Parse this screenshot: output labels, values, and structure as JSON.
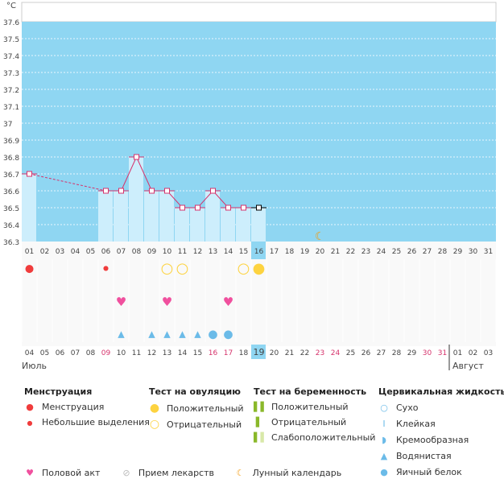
{
  "chart_data": {
    "type": "line",
    "unit_label": "°C",
    "ylim": [
      36.3,
      37.6
    ],
    "yticks": [
      "36.3",
      "36.4",
      "36.5",
      "36.6",
      "36.7",
      "36.8",
      "36.9",
      "37",
      "37.1",
      "37.2",
      "37.3",
      "37.4",
      "37.5",
      "37.6"
    ],
    "cycle_days": [
      "01",
      "02",
      "03",
      "04",
      "05",
      "06",
      "07",
      "08",
      "09",
      "10",
      "11",
      "12",
      "13",
      "14",
      "15",
      "16",
      "17",
      "18",
      "19",
      "20",
      "21",
      "22",
      "23",
      "24",
      "25",
      "26",
      "27",
      "28",
      "29",
      "30",
      "31"
    ],
    "temperatures": [
      36.7,
      null,
      null,
      null,
      null,
      36.6,
      36.6,
      36.8,
      36.6,
      36.6,
      36.5,
      36.5,
      36.6,
      36.5,
      36.5,
      36.5
    ],
    "current_day_index": 15,
    "moon_day_index": 19,
    "dates": [
      "04",
      "05",
      "06",
      "07",
      "08",
      "09",
      "10",
      "11",
      "12",
      "13",
      "14",
      "15",
      "16",
      "17",
      "18",
      "19",
      "20",
      "21",
      "22",
      "23",
      "24",
      "25",
      "26",
      "27",
      "28",
      "29",
      "30",
      "31",
      "01",
      "02",
      "03"
    ],
    "weekend_date_indices": [
      5,
      12,
      13,
      19,
      20,
      26,
      27
    ],
    "months": [
      "Июль",
      "Август"
    ],
    "month_break_index": 28,
    "events": {
      "menstruation": [
        0
      ],
      "spotting": [
        5
      ],
      "ovulation_negative": [
        9,
        10,
        14
      ],
      "ovulation_positive": [
        15
      ],
      "intercourse": [
        6,
        9,
        13
      ],
      "fluid_watery": [
        6,
        8,
        9,
        10,
        11
      ],
      "fluid_eggwhite": [
        12,
        13
      ]
    },
    "colors": {
      "plot_bg": "#8fd6f2",
      "bar": "#cdeefc",
      "line": "#d6336c",
      "heart": "#f0509e",
      "blood": "#f03c3c",
      "ovu": "#fdd340",
      "fluid": "#6bbbe8",
      "moon": "#f39c12",
      "weekend": "#d6336c"
    }
  },
  "legend": {
    "menstruation": {
      "title": "Менструация",
      "items": [
        "Менструация",
        "Небольшие выделения"
      ]
    },
    "ovulation": {
      "title": "Тест на овуляцию",
      "items": [
        "Положительный",
        "Отрицательный"
      ]
    },
    "pregnancy": {
      "title": "Тест на беременность",
      "items": [
        "Положительный",
        "Отрицательный",
        "Слабоположительный"
      ]
    },
    "fluid": {
      "title": "Цервикальная жидкость",
      "items": [
        "Сухо",
        "Клейкая",
        "Кремообразная",
        "Водянистая",
        "Яичный белок"
      ]
    },
    "other": [
      "Половой акт",
      "Прием лекарств",
      "Лунный календарь"
    ]
  }
}
